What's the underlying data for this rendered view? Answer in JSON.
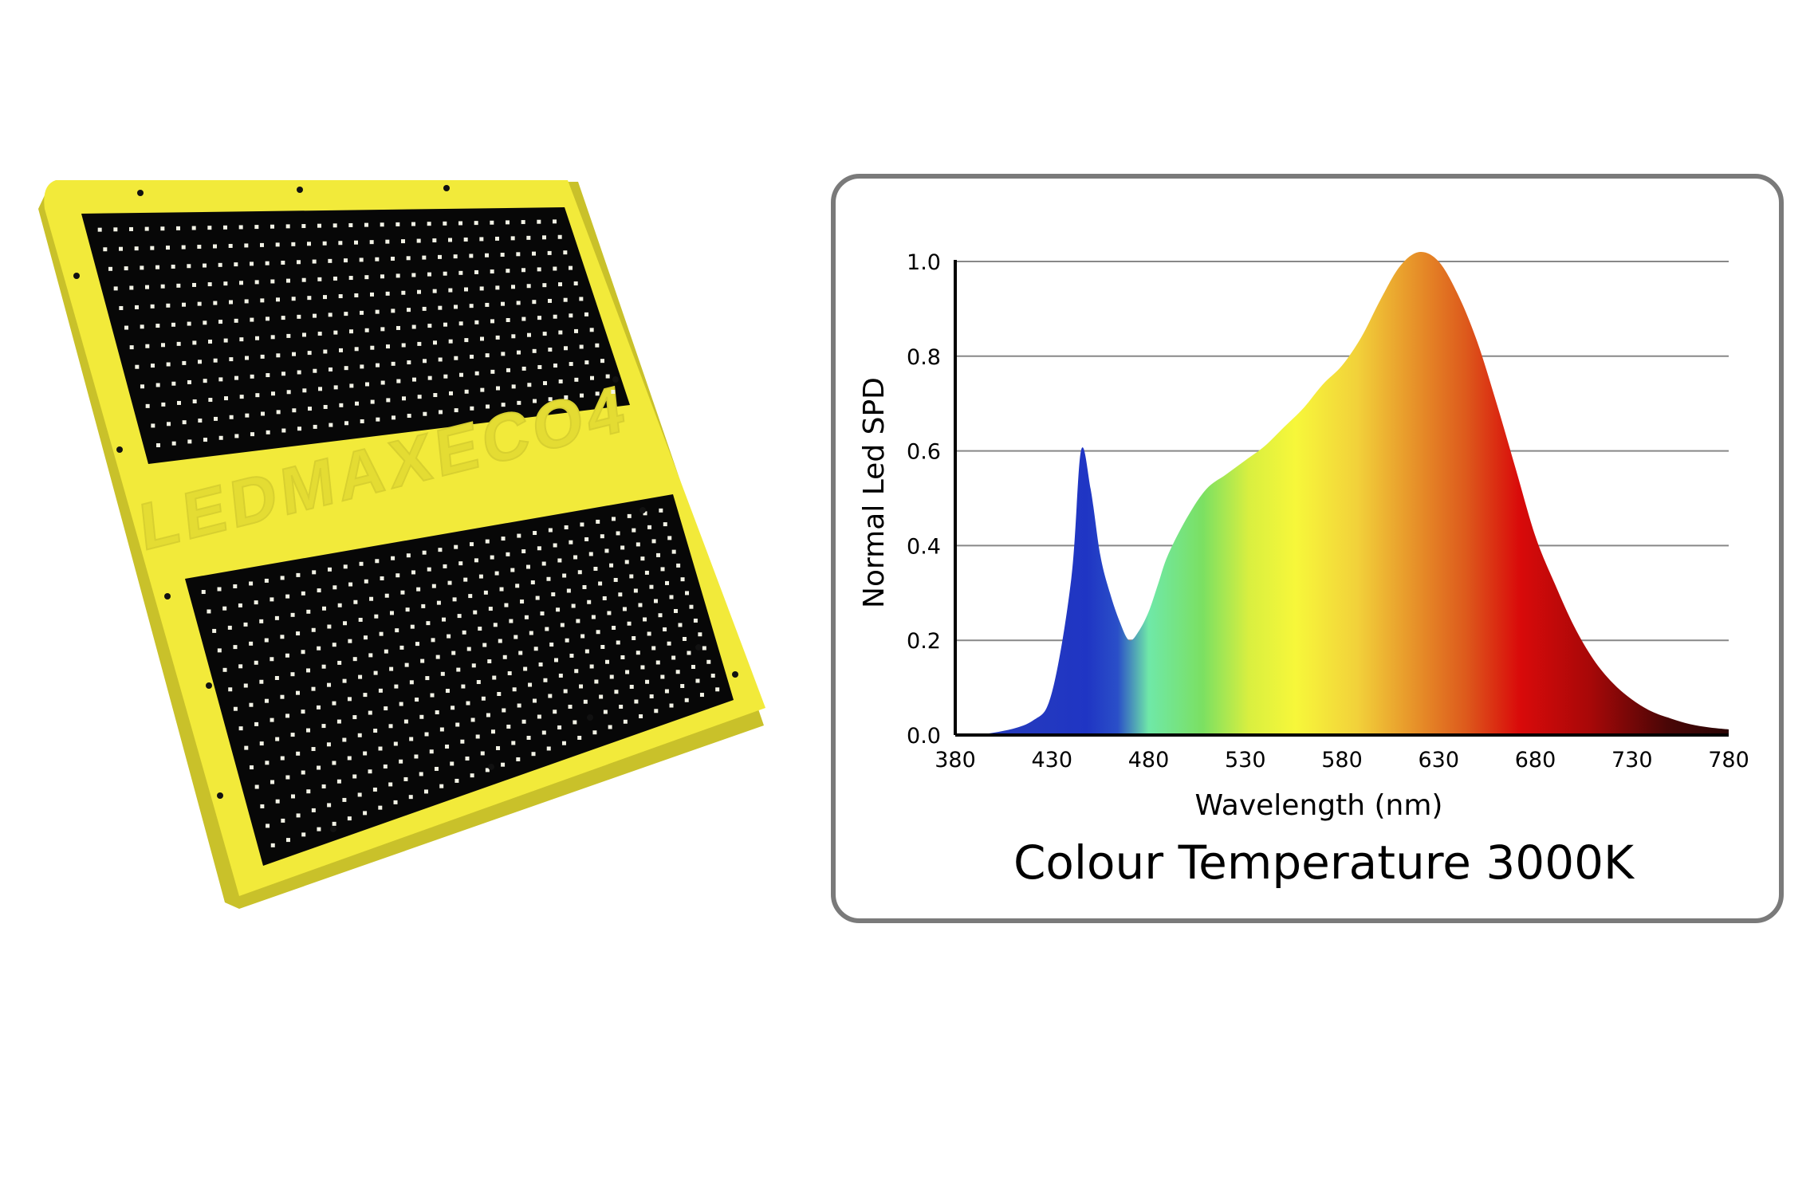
{
  "product": {
    "brand_watermark": "LEDMAXECO4"
  },
  "colors": {
    "frame": "#f2ea3a",
    "frame_shadow": "#c9c12a",
    "board": "#070707",
    "led": "#f3f3e6",
    "panel_border": "#7a7a7a"
  },
  "chart_data": {
    "type": "area",
    "title": "Colour Temperature 3000K",
    "xlabel": "Wavelength (nm)",
    "ylabel": "Normal Led SPD",
    "xlim": [
      380,
      780
    ],
    "ylim": [
      0,
      1.0
    ],
    "x_ticks": [
      "380",
      "430",
      "480",
      "530",
      "580",
      "630",
      "680",
      "730",
      "780"
    ],
    "y_ticks": [
      "0.0",
      "0.2",
      "0.4",
      "0.6",
      "0.8",
      "1.0"
    ],
    "grid": "horizontal",
    "fill": "visible spectrum gradient",
    "x": [
      380,
      400,
      420,
      430,
      440,
      445,
      450,
      455,
      460,
      465,
      470,
      475,
      480,
      485,
      490,
      500,
      510,
      520,
      530,
      540,
      550,
      560,
      570,
      580,
      590,
      600,
      610,
      620,
      630,
      640,
      650,
      660,
      670,
      680,
      690,
      700,
      710,
      720,
      730,
      740,
      750,
      760,
      770,
      780
    ],
    "y": [
      0.0,
      0.005,
      0.03,
      0.09,
      0.33,
      0.6,
      0.52,
      0.38,
      0.3,
      0.24,
      0.2,
      0.22,
      0.26,
      0.32,
      0.38,
      0.46,
      0.52,
      0.55,
      0.58,
      0.61,
      0.65,
      0.69,
      0.74,
      0.78,
      0.84,
      0.92,
      0.99,
      1.02,
      1.0,
      0.93,
      0.83,
      0.7,
      0.56,
      0.42,
      0.32,
      0.23,
      0.16,
      0.11,
      0.075,
      0.05,
      0.035,
      0.023,
      0.016,
      0.012
    ]
  }
}
